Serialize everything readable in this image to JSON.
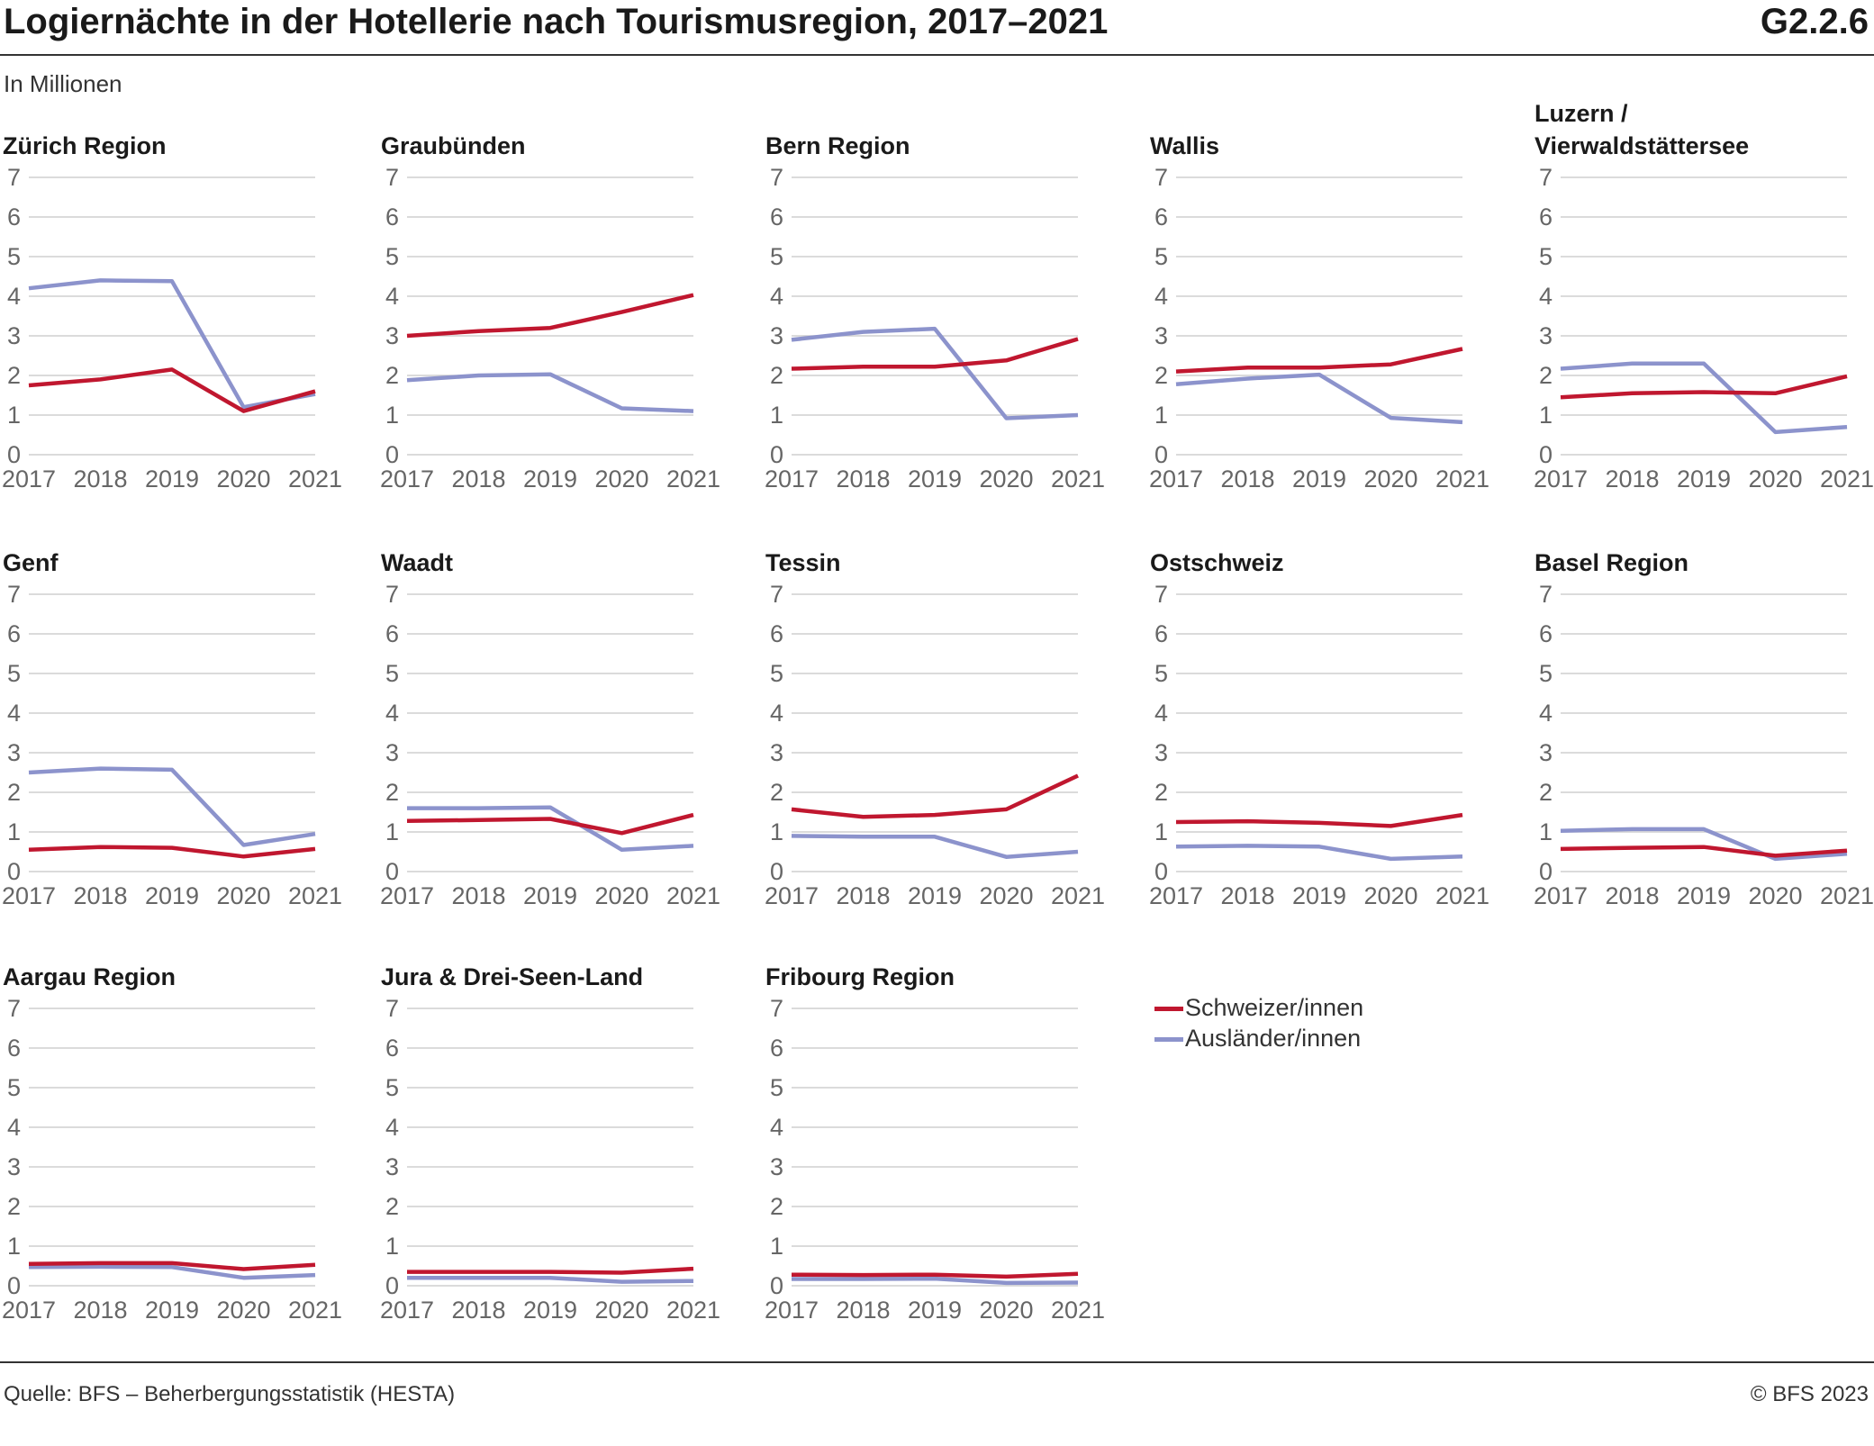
{
  "header": {
    "title": "Logiernächte in der Hotellerie nach Tourismusregion, 2017–2021",
    "code": "G2.2.6",
    "subtitle": "In Millionen"
  },
  "colors": {
    "schweizer": "#c0172f",
    "auslaender": "#8c93cc",
    "grid": "#cfcfcf",
    "tick": "#666666"
  },
  "legend": {
    "items": [
      {
        "label": "Schweizer/innen",
        "color": "#c0172f"
      },
      {
        "label": "Ausländer/innen",
        "color": "#8c93cc"
      }
    ]
  },
  "chart_data": [
    {
      "type": "line",
      "title": [
        "Zürich Region"
      ],
      "categories": [
        "2017",
        "2018",
        "2019",
        "2020",
        "2021"
      ],
      "y_ticks": [
        "0",
        "1",
        "2",
        "3",
        "4",
        "5",
        "6",
        "7"
      ],
      "ylim": [
        0,
        7
      ],
      "grid": true,
      "series": [
        {
          "name": "Schweizer/innen",
          "values": [
            1.75,
            1.9,
            2.15,
            1.1,
            1.6
          ]
        },
        {
          "name": "Ausländer/innen",
          "values": [
            4.2,
            4.4,
            4.38,
            1.2,
            1.53
          ]
        }
      ]
    },
    {
      "type": "line",
      "title": [
        "Graubünden"
      ],
      "categories": [
        "2017",
        "2018",
        "2019",
        "2020",
        "2021"
      ],
      "y_ticks": [
        "0",
        "1",
        "2",
        "3",
        "4",
        "5",
        "6",
        "7"
      ],
      "ylim": [
        0,
        7
      ],
      "grid": true,
      "series": [
        {
          "name": "Schweizer/innen",
          "values": [
            3.0,
            3.12,
            3.2,
            3.6,
            4.03
          ]
        },
        {
          "name": "Ausländer/innen",
          "values": [
            1.88,
            2.0,
            2.03,
            1.17,
            1.1
          ]
        }
      ]
    },
    {
      "type": "line",
      "title": [
        "Bern Region"
      ],
      "categories": [
        "2017",
        "2018",
        "2019",
        "2020",
        "2021"
      ],
      "y_ticks": [
        "0",
        "1",
        "2",
        "3",
        "4",
        "5",
        "6",
        "7"
      ],
      "ylim": [
        0,
        7
      ],
      "grid": true,
      "series": [
        {
          "name": "Schweizer/innen",
          "values": [
            2.17,
            2.22,
            2.22,
            2.38,
            2.92
          ]
        },
        {
          "name": "Ausländer/innen",
          "values": [
            2.9,
            3.1,
            3.18,
            0.92,
            1.0
          ]
        }
      ]
    },
    {
      "type": "line",
      "title": [
        "Wallis"
      ],
      "categories": [
        "2017",
        "2018",
        "2019",
        "2020",
        "2021"
      ],
      "y_ticks": [
        "0",
        "1",
        "2",
        "3",
        "4",
        "5",
        "6",
        "7"
      ],
      "ylim": [
        0,
        7
      ],
      "grid": true,
      "series": [
        {
          "name": "Schweizer/innen",
          "values": [
            2.1,
            2.2,
            2.2,
            2.28,
            2.67
          ]
        },
        {
          "name": "Ausländer/innen",
          "values": [
            1.78,
            1.92,
            2.02,
            0.93,
            0.82
          ]
        }
      ]
    },
    {
      "type": "line",
      "title": [
        "Luzern /",
        "Vierwaldstättersee"
      ],
      "categories": [
        "2017",
        "2018",
        "2019",
        "2020",
        "2021"
      ],
      "y_ticks": [
        "0",
        "1",
        "2",
        "3",
        "4",
        "5",
        "6",
        "7"
      ],
      "ylim": [
        0,
        7
      ],
      "grid": true,
      "series": [
        {
          "name": "Schweizer/innen",
          "values": [
            1.45,
            1.55,
            1.58,
            1.55,
            1.98
          ]
        },
        {
          "name": "Ausländer/innen",
          "values": [
            2.17,
            2.3,
            2.3,
            0.57,
            0.7
          ]
        }
      ]
    },
    {
      "type": "line",
      "title": [
        "Genf"
      ],
      "categories": [
        "2017",
        "2018",
        "2019",
        "2020",
        "2021"
      ],
      "y_ticks": [
        "0",
        "1",
        "2",
        "3",
        "4",
        "5",
        "6",
        "7"
      ],
      "ylim": [
        0,
        7
      ],
      "grid": true,
      "series": [
        {
          "name": "Schweizer/innen",
          "values": [
            0.55,
            0.62,
            0.6,
            0.38,
            0.57
          ]
        },
        {
          "name": "Ausländer/innen",
          "values": [
            2.5,
            2.6,
            2.57,
            0.67,
            0.95
          ]
        }
      ]
    },
    {
      "type": "line",
      "title": [
        "Waadt"
      ],
      "categories": [
        "2017",
        "2018",
        "2019",
        "2020",
        "2021"
      ],
      "y_ticks": [
        "0",
        "1",
        "2",
        "3",
        "4",
        "5",
        "6",
        "7"
      ],
      "ylim": [
        0,
        7
      ],
      "grid": true,
      "series": [
        {
          "name": "Schweizer/innen",
          "values": [
            1.28,
            1.3,
            1.33,
            0.97,
            1.43
          ]
        },
        {
          "name": "Ausländer/innen",
          "values": [
            1.6,
            1.6,
            1.62,
            0.55,
            0.65
          ]
        }
      ]
    },
    {
      "type": "line",
      "title": [
        "Tessin"
      ],
      "categories": [
        "2017",
        "2018",
        "2019",
        "2020",
        "2021"
      ],
      "y_ticks": [
        "0",
        "1",
        "2",
        "3",
        "4",
        "5",
        "6",
        "7"
      ],
      "ylim": [
        0,
        7
      ],
      "grid": true,
      "series": [
        {
          "name": "Schweizer/innen",
          "values": [
            1.57,
            1.38,
            1.43,
            1.57,
            2.42
          ]
        },
        {
          "name": "Ausländer/innen",
          "values": [
            0.9,
            0.88,
            0.88,
            0.37,
            0.5
          ]
        }
      ]
    },
    {
      "type": "line",
      "title": [
        "Ostschweiz"
      ],
      "categories": [
        "2017",
        "2018",
        "2019",
        "2020",
        "2021"
      ],
      "y_ticks": [
        "0",
        "1",
        "2",
        "3",
        "4",
        "5",
        "6",
        "7"
      ],
      "ylim": [
        0,
        7
      ],
      "grid": true,
      "series": [
        {
          "name": "Schweizer/innen",
          "values": [
            1.25,
            1.27,
            1.23,
            1.15,
            1.43
          ]
        },
        {
          "name": "Ausländer/innen",
          "values": [
            0.63,
            0.65,
            0.63,
            0.32,
            0.38
          ]
        }
      ]
    },
    {
      "type": "line",
      "title": [
        "Basel Region"
      ],
      "categories": [
        "2017",
        "2018",
        "2019",
        "2020",
        "2021"
      ],
      "y_ticks": [
        "0",
        "1",
        "2",
        "3",
        "4",
        "5",
        "6",
        "7"
      ],
      "ylim": [
        0,
        7
      ],
      "grid": true,
      "series": [
        {
          "name": "Schweizer/innen",
          "values": [
            0.57,
            0.6,
            0.62,
            0.4,
            0.53
          ]
        },
        {
          "name": "Ausländer/innen",
          "values": [
            1.03,
            1.07,
            1.07,
            0.32,
            0.45
          ]
        }
      ]
    },
    {
      "type": "line",
      "title": [
        "Aargau Region"
      ],
      "categories": [
        "2017",
        "2018",
        "2019",
        "2020",
        "2021"
      ],
      "y_ticks": [
        "0",
        "1",
        "2",
        "3",
        "4",
        "5",
        "6",
        "7"
      ],
      "ylim": [
        0,
        7
      ],
      "grid": true,
      "series": [
        {
          "name": "Schweizer/innen",
          "values": [
            0.55,
            0.57,
            0.57,
            0.42,
            0.53
          ]
        },
        {
          "name": "Ausländer/innen",
          "values": [
            0.47,
            0.48,
            0.47,
            0.2,
            0.27
          ]
        }
      ]
    },
    {
      "type": "line",
      "title": [
        "Jura & Drei-Seen-Land"
      ],
      "categories": [
        "2017",
        "2018",
        "2019",
        "2020",
        "2021"
      ],
      "y_ticks": [
        "0",
        "1",
        "2",
        "3",
        "4",
        "5",
        "6",
        "7"
      ],
      "ylim": [
        0,
        7
      ],
      "grid": true,
      "series": [
        {
          "name": "Schweizer/innen",
          "values": [
            0.35,
            0.35,
            0.35,
            0.33,
            0.43
          ]
        },
        {
          "name": "Ausländer/innen",
          "values": [
            0.2,
            0.2,
            0.2,
            0.1,
            0.12
          ]
        }
      ]
    },
    {
      "type": "line",
      "title": [
        "Fribourg Region"
      ],
      "categories": [
        "2017",
        "2018",
        "2019",
        "2020",
        "2021"
      ],
      "y_ticks": [
        "0",
        "1",
        "2",
        "3",
        "4",
        "5",
        "6",
        "7"
      ],
      "ylim": [
        0,
        7
      ],
      "grid": true,
      "series": [
        {
          "name": "Schweizer/innen",
          "values": [
            0.28,
            0.27,
            0.28,
            0.23,
            0.3
          ]
        },
        {
          "name": "Ausländer/innen",
          "values": [
            0.17,
            0.17,
            0.18,
            0.07,
            0.08
          ]
        }
      ]
    }
  ],
  "footer": {
    "source": "Quelle: BFS – Beherbergungsstatistik (HESTA)",
    "copyright": "© BFS 2023"
  }
}
